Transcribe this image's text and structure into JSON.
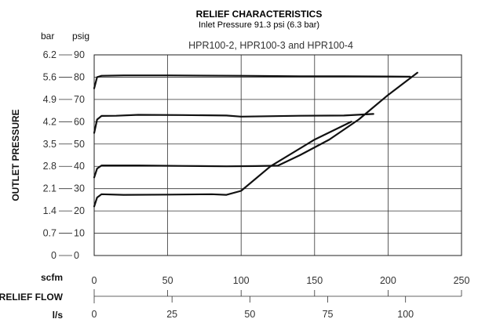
{
  "chart_data": {
    "type": "line",
    "title": "RELIEF CHARACTERISTICS",
    "subtitle": "Inlet Pressure 91.3 psi (6.3 bar)",
    "series_label": "HPR100-2, HPR100-3 and HPR100-4",
    "ylabel": "OUTLET PRESSURE",
    "y_units": {
      "left": "bar",
      "right": "psig"
    },
    "y_ticks_bar": [
      "6.2",
      "5.6",
      "4.9",
      "4.2",
      "3.5",
      "2.8",
      "2.1",
      "1.4",
      "0.7",
      "0"
    ],
    "y_ticks_psig": [
      90,
      80,
      70,
      60,
      50,
      40,
      30,
      20,
      10,
      0
    ],
    "ylim": [
      0,
      90
    ],
    "xlabel": "RELIEF FLOW",
    "x_units": {
      "top": "scfm",
      "bottom": "l/s"
    },
    "x_ticks_scfm": [
      0,
      50,
      100,
      150,
      200,
      250
    ],
    "x_ticks_ls": [
      0,
      25,
      50,
      75,
      100
    ],
    "xlim": [
      0,
      250
    ],
    "grid": true,
    "series": [
      {
        "set_pressure_psig": 80,
        "x": [
          0,
          2,
          5,
          20,
          50,
          100,
          140,
          170,
          200,
          215
        ],
        "y": [
          75,
          80,
          80.6,
          80.8,
          80.8,
          80.6,
          80.4,
          80.4,
          80.3,
          80.2
        ]
      },
      {
        "set_pressure_psig": 60,
        "x": [
          0,
          2,
          5,
          15,
          30,
          60,
          90,
          100,
          140,
          170,
          190
        ],
        "y": [
          55,
          61,
          62.6,
          62.7,
          63.1,
          63,
          62.8,
          62.3,
          62.7,
          62.8,
          63.5
        ]
      },
      {
        "set_pressure_psig": 40,
        "x": [
          0,
          2,
          5,
          30,
          60,
          90,
          110,
          125,
          140,
          160,
          180,
          200,
          220
        ],
        "y": [
          35,
          39,
          40.4,
          40.4,
          40.2,
          40,
          40.1,
          40.3,
          45,
          52,
          61,
          72,
          82
        ]
      },
      {
        "set_pressure_psig": 20,
        "x": [
          0,
          2,
          5,
          20,
          50,
          80,
          90,
          100,
          120,
          150,
          175
        ],
        "y": [
          22,
          26,
          27.5,
          27.2,
          27.3,
          27.5,
          27.2,
          29,
          40,
          52,
          60
        ]
      }
    ]
  }
}
